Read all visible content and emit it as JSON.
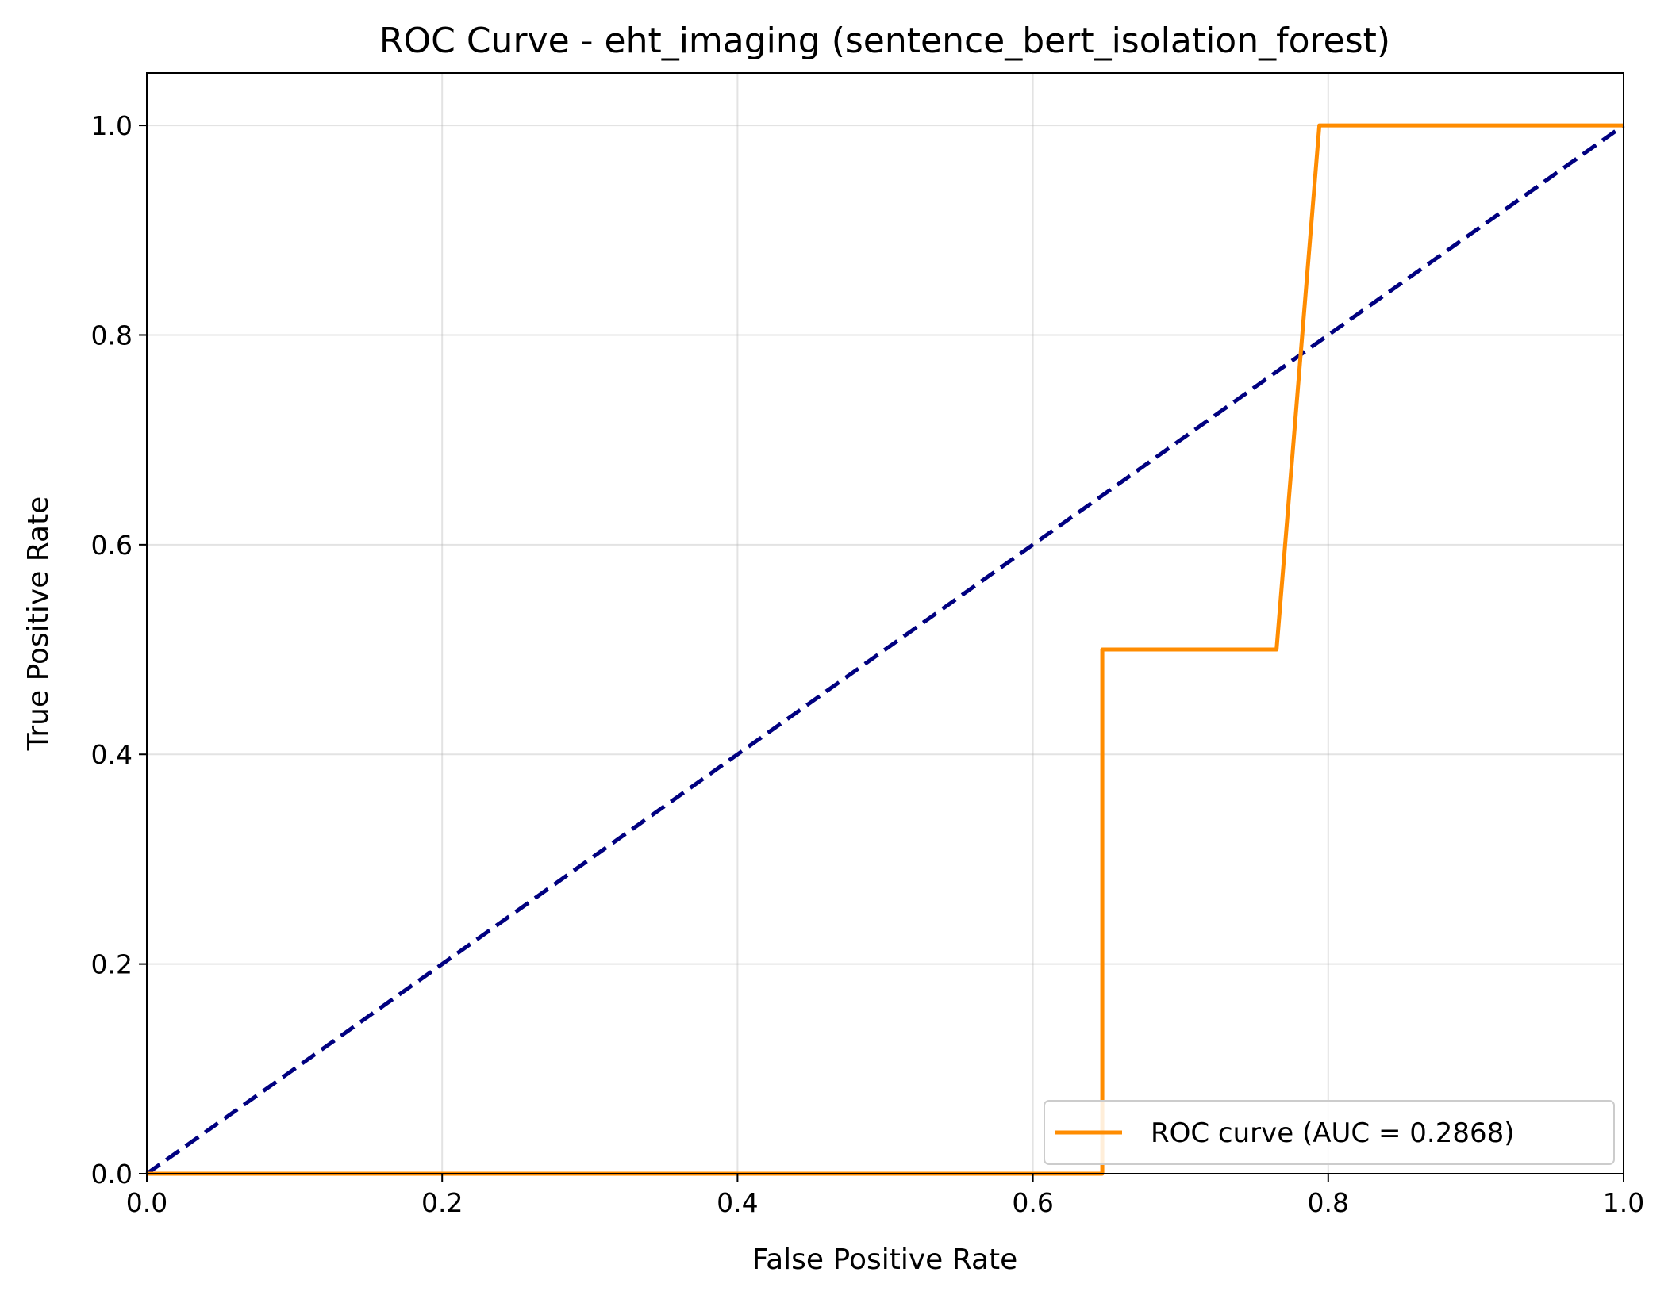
{
  "chart_data": {
    "type": "line",
    "title": "ROC Curve - eht_imaging (sentence_bert_isolation_forest)",
    "xlabel": "False Positive Rate",
    "ylabel": "True Positive Rate",
    "xlim": [
      0.0,
      1.0
    ],
    "ylim": [
      0.0,
      1.05
    ],
    "x_ticks": [
      "0.0",
      "0.2",
      "0.4",
      "0.6",
      "0.8",
      "1.0"
    ],
    "y_ticks": [
      "0.0",
      "0.2",
      "0.4",
      "0.6",
      "0.8",
      "1.0"
    ],
    "grid": true,
    "legend_position": "lower-right",
    "series": [
      {
        "name": "ROC curve (AUC = 0.2868)",
        "color": "#ff8c00",
        "style": "solid",
        "x": [
          0.0,
          0.647,
          0.647,
          0.765,
          0.794,
          0.794,
          1.0
        ],
        "y": [
          0.0,
          0.0,
          0.5,
          0.5,
          1.0,
          1.0,
          1.0
        ]
      },
      {
        "color": "#000080",
        "style": "dashed",
        "x": [
          0.0,
          1.0
        ],
        "y": [
          0.0,
          1.0
        ]
      }
    ]
  }
}
